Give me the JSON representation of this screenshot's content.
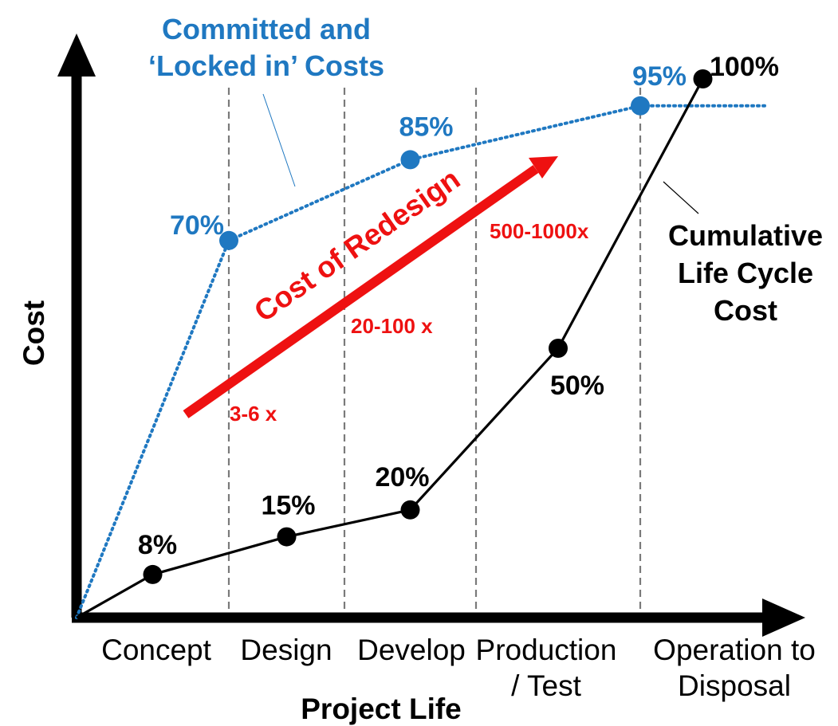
{
  "chart_data": {
    "type": "line",
    "xlabel": "Project Life",
    "ylabel": "Cost",
    "ylim": [
      0,
      100
    ],
    "phases": [
      {
        "lines": [
          "Concept"
        ]
      },
      {
        "lines": [
          "Design"
        ]
      },
      {
        "lines": [
          "Develop"
        ]
      },
      {
        "lines": [
          "Production",
          "/ Test"
        ]
      },
      {
        "lines": [
          "Operation to",
          "Disposal"
        ]
      }
    ],
    "series": [
      {
        "name": "Committed and 'Locked in' Costs",
        "title_lines": [
          "Committed and",
          "‘Locked in’ Costs"
        ],
        "color": "#1f78c1",
        "style": "dotted",
        "points": [
          {
            "x": 0,
            "y": 0,
            "label": ""
          },
          {
            "x": 1,
            "y": 70,
            "label": "70%"
          },
          {
            "x": 2.5,
            "y": 85,
            "label": "85%"
          },
          {
            "x": 4,
            "y": 95,
            "label": "95%"
          }
        ],
        "extends_to_x": 5
      },
      {
        "name": "Cumulative Life Cycle Cost",
        "title_lines": [
          "Cumulative",
          "Life Cycle",
          "Cost"
        ],
        "color": "#000000",
        "style": "solid",
        "points": [
          {
            "x": 0,
            "y": 0,
            "label": ""
          },
          {
            "x": 0.5,
            "y": 8,
            "label": "8%"
          },
          {
            "x": 1.5,
            "y": 15,
            "label": "15%"
          },
          {
            "x": 2.5,
            "y": 20,
            "label": "20%"
          },
          {
            "x": 3.5,
            "y": 50,
            "label": "50%"
          },
          {
            "x": 4.5,
            "y": 100,
            "label": "100%"
          }
        ]
      }
    ],
    "annotations": {
      "arrow_label": "Cost of Redesign",
      "arrow_color": "#ee1111",
      "multipliers": [
        "3-6 x",
        "20-100 x",
        "500-1000x"
      ]
    }
  }
}
